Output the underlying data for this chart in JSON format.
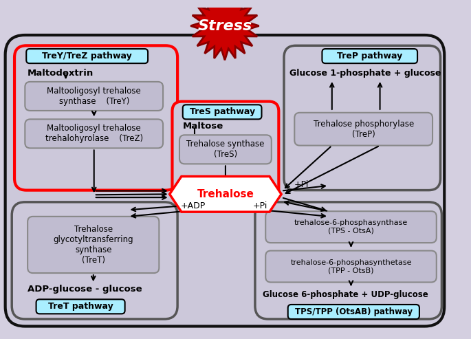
{
  "bg_color": "#d4cfe0",
  "outer_box_facecolor": "#ccc8da",
  "outer_box_edgecolor": "#111111",
  "inner_box_facecolor": "#ccc8da",
  "inner_box_edgecolor": "#555555",
  "enzyme_box_facecolor": "#c0bcd0",
  "enzyme_box_edgecolor": "#888888",
  "pathway_label_bg": "#aaeeff",
  "pathway_label_edge": "#000000",
  "stress_fill": "#cc0000",
  "stress_edge": "#880000",
  "trey_trez_label": "TreY/TreZ pathway",
  "tres_label": "TreS pathway",
  "trep_label": "TreP pathway",
  "tret_label": "TreT pathway",
  "tps_tpp_label": "TPS/TPP (OtsAB) pathway",
  "stress_text": "Stress",
  "trehalose_text": "Trehalose",
  "maltodextrin": "Maltodextrin",
  "maltose": "Maltose",
  "glucose1p": "Glucose 1-phosphate + glucose",
  "glucose6p": "Glucose 6-phosphate + UDP-glucose",
  "adp_glucose": "ADP-glucose - glucose",
  "plus_adp": "+ADP",
  "plus_pi_right": "+Pi",
  "plus_pi_bottom": "+Pi",
  "trey_enzyme": "Maltooligosyl trehalose\nsynthase    (TreY)",
  "trez_enzyme": "Maltooligosyl trehalose\ntrehalohyrolase    (TreZ)",
  "tres_enzyme": "Trehalose synthase\n(TreS)",
  "trep_enzyme": "Trehalose phosphorylase\n(TreP)",
  "tret_enzyme": "Trehalose\nglycotyltransferring\nsynthase\n(TreT)",
  "tps_enzyme": "trehalose-6-phosphasynthase\n(TPS - OtsA)",
  "tpp_enzyme": "trehalose-6-phosphasynthetase\n(TPP - OtsB)"
}
